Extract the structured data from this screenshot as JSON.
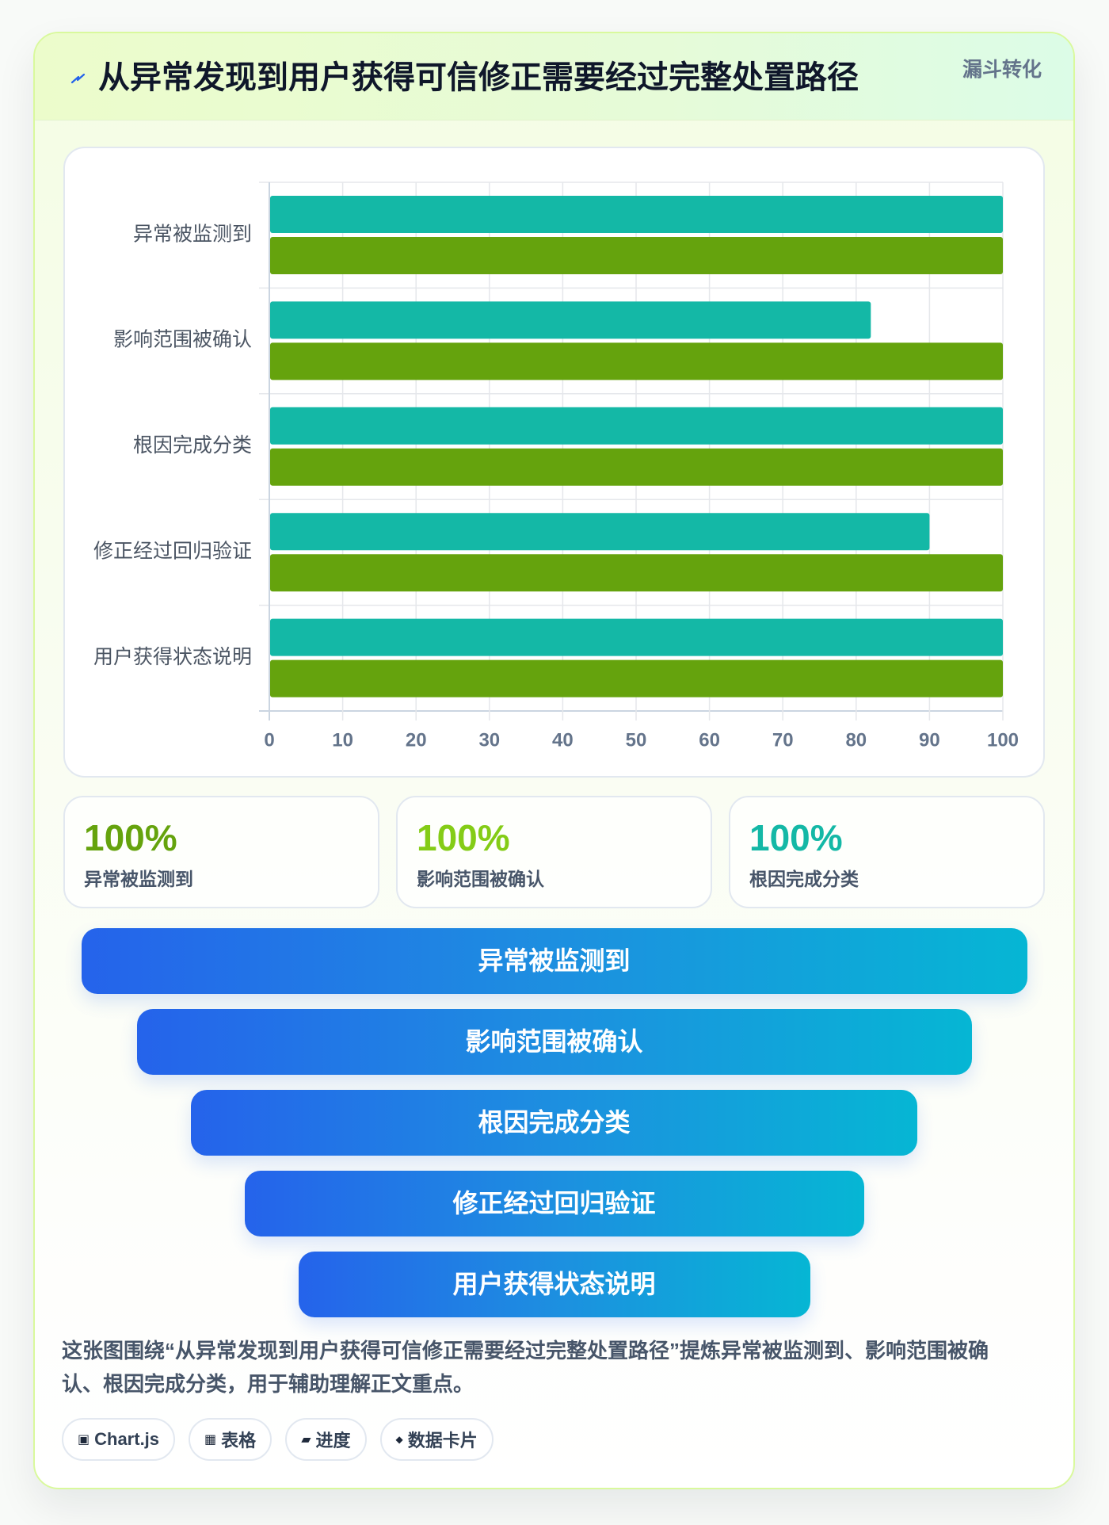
{
  "header": {
    "icon": "lightning-icon",
    "title": "从异常发现到用户获得可信修正需要经过完整处置路径",
    "badge": "漏斗转化"
  },
  "chart_data": {
    "type": "bar",
    "orientation": "horizontal",
    "categories": [
      "异常被监测到",
      "影响范围被确认",
      "根因完成分类",
      "修正经过回归验证",
      "用户获得状态说明"
    ],
    "series": [
      {
        "color": "#14b8a6",
        "values": [
          100,
          82,
          100,
          90,
          100
        ]
      },
      {
        "color": "#65a30d",
        "values": [
          100,
          100,
          100,
          100,
          100
        ]
      }
    ],
    "xlim": [
      0,
      100
    ],
    "xticks": [
      0,
      10,
      20,
      30,
      40,
      50,
      60,
      70,
      80,
      90,
      100
    ],
    "grid": true,
    "legend": "none"
  },
  "stats": [
    {
      "value": "100%",
      "label": "异常被监测到",
      "color": "#65a30d"
    },
    {
      "value": "100%",
      "label": "影响范围被确认",
      "color": "#84cc16"
    },
    {
      "value": "100%",
      "label": "根因完成分类",
      "color": "#14b8a6"
    }
  ],
  "funnel": {
    "stages": [
      "异常被监测到",
      "影响范围被确认",
      "根因完成分类",
      "修正经过回归验证",
      "用户获得状态说明"
    ]
  },
  "description": "这张图围绕“从异常发现到用户获得可信修正需要经过完整处置路径”提炼异常被监测到、影响范围被确认、根因完成分类，用于辅助理解正文重点。",
  "tags": [
    {
      "icon": "chart-icon",
      "glyph": "▣",
      "label": "Chart.js"
    },
    {
      "icon": "table-icon",
      "glyph": "▦",
      "label": "表格"
    },
    {
      "icon": "progress-icon",
      "glyph": "▰",
      "label": "进度"
    },
    {
      "icon": "data-card-icon",
      "glyph": "◆",
      "label": "数据卡片"
    }
  ],
  "colors": {
    "card_border": "#d9f99d",
    "accent_blue": "#2563eb",
    "funnel_start": "#2563eb",
    "funnel_end": "#06b6d4"
  }
}
